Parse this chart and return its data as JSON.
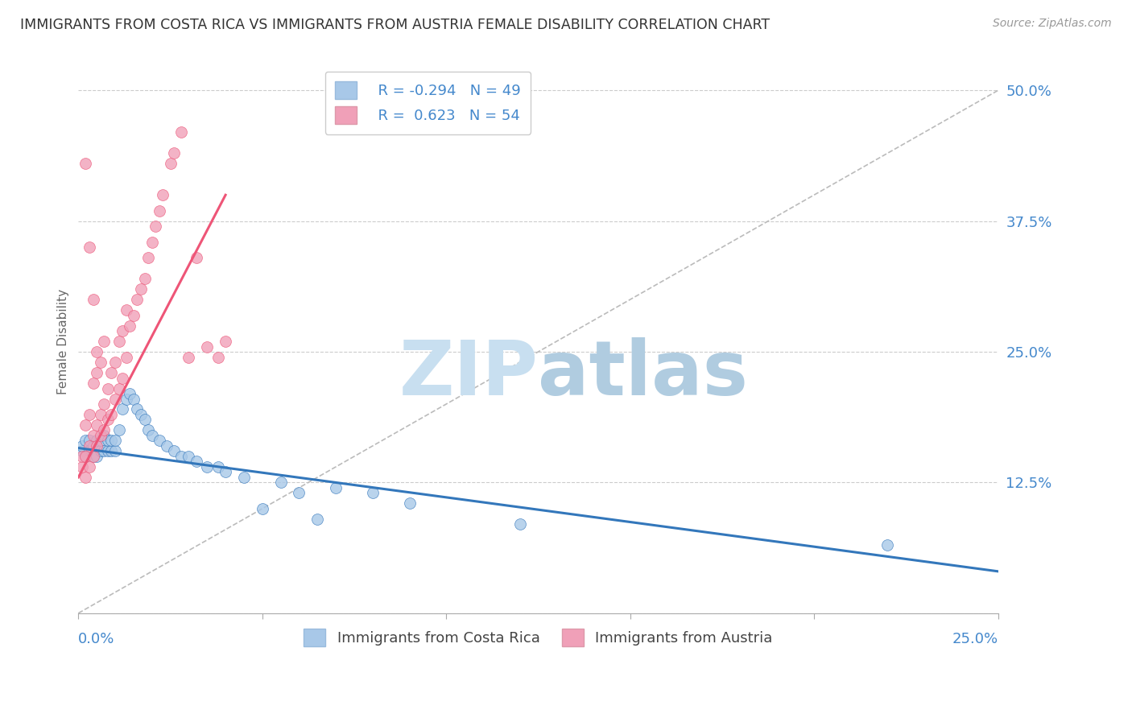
{
  "title": "IMMIGRANTS FROM COSTA RICA VS IMMIGRANTS FROM AUSTRIA FEMALE DISABILITY CORRELATION CHART",
  "source": "Source: ZipAtlas.com",
  "ylabel": "Female Disability",
  "y_ticks": [
    0.0,
    0.125,
    0.25,
    0.375,
    0.5
  ],
  "y_tick_labels": [
    "",
    "12.5%",
    "25.0%",
    "37.5%",
    "50.0%"
  ],
  "x_lim": [
    0.0,
    0.25
  ],
  "y_lim": [
    0.0,
    0.52
  ],
  "legend_r1": "R = -0.294",
  "legend_n1": "N = 49",
  "legend_r2": "R =  0.623",
  "legend_n2": "N = 54",
  "series1_label": "Immigrants from Costa Rica",
  "series2_label": "Immigrants from Austria",
  "color1": "#a8c8e8",
  "color2": "#f0a0b8",
  "trendline1_color": "#3377bb",
  "trendline2_color": "#ee5577",
  "watermark_color": "#ddeef8",
  "title_color": "#333333",
  "axis_color": "#4488cc",
  "legend_text_color": "#4488cc",
  "background_color": "#ffffff",
  "grid_color": "#cccccc",
  "costa_rica_x": [
    0.001,
    0.001,
    0.002,
    0.002,
    0.003,
    0.003,
    0.004,
    0.004,
    0.005,
    0.005,
    0.006,
    0.006,
    0.007,
    0.007,
    0.008,
    0.008,
    0.009,
    0.009,
    0.01,
    0.01,
    0.011,
    0.012,
    0.013,
    0.014,
    0.015,
    0.016,
    0.017,
    0.018,
    0.019,
    0.02,
    0.022,
    0.024,
    0.026,
    0.028,
    0.03,
    0.032,
    0.035,
    0.038,
    0.04,
    0.045,
    0.05,
    0.055,
    0.06,
    0.065,
    0.07,
    0.08,
    0.09,
    0.12,
    0.22
  ],
  "costa_rica_y": [
    0.155,
    0.16,
    0.15,
    0.165,
    0.155,
    0.165,
    0.15,
    0.16,
    0.15,
    0.165,
    0.155,
    0.165,
    0.155,
    0.17,
    0.155,
    0.165,
    0.155,
    0.165,
    0.155,
    0.165,
    0.175,
    0.195,
    0.205,
    0.21,
    0.205,
    0.195,
    0.19,
    0.185,
    0.175,
    0.17,
    0.165,
    0.16,
    0.155,
    0.15,
    0.15,
    0.145,
    0.14,
    0.14,
    0.135,
    0.13,
    0.1,
    0.125,
    0.115,
    0.09,
    0.12,
    0.115,
    0.105,
    0.085,
    0.065
  ],
  "austria_x": [
    0.001,
    0.001,
    0.002,
    0.002,
    0.002,
    0.003,
    0.003,
    0.003,
    0.004,
    0.004,
    0.004,
    0.005,
    0.005,
    0.005,
    0.006,
    0.006,
    0.006,
    0.007,
    0.007,
    0.007,
    0.008,
    0.008,
    0.009,
    0.009,
    0.01,
    0.01,
    0.011,
    0.011,
    0.012,
    0.012,
    0.013,
    0.013,
    0.014,
    0.015,
    0.016,
    0.017,
    0.018,
    0.019,
    0.02,
    0.021,
    0.022,
    0.023,
    0.025,
    0.026,
    0.028,
    0.03,
    0.032,
    0.035,
    0.038,
    0.04,
    0.002,
    0.003,
    0.004,
    0.005
  ],
  "austria_y": [
    0.14,
    0.15,
    0.13,
    0.15,
    0.18,
    0.14,
    0.16,
    0.19,
    0.15,
    0.17,
    0.22,
    0.16,
    0.18,
    0.23,
    0.17,
    0.19,
    0.24,
    0.175,
    0.2,
    0.26,
    0.185,
    0.215,
    0.19,
    0.23,
    0.205,
    0.24,
    0.215,
    0.26,
    0.225,
    0.27,
    0.245,
    0.29,
    0.275,
    0.285,
    0.3,
    0.31,
    0.32,
    0.34,
    0.355,
    0.37,
    0.385,
    0.4,
    0.43,
    0.44,
    0.46,
    0.245,
    0.34,
    0.255,
    0.245,
    0.26,
    0.43,
    0.35,
    0.3,
    0.25
  ]
}
